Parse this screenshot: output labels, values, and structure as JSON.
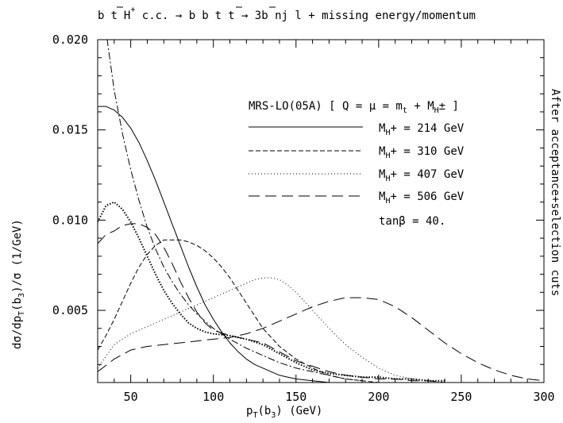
{
  "chart_data": {
    "type": "line",
    "title": "b t̄ H⁺ + c.c. → b b̄ t t̄ → 3b nj l + missing energy/momentum",
    "xlabel": "pT(b3) (GeV)",
    "ylabel": "dσ/dpT(b3)/σ (1/GeV)",
    "right_label": "After acceptance+selection cuts",
    "xlim": [
      30,
      300
    ],
    "ylim": [
      0.001,
      0.02
    ],
    "x_ticks": [
      50,
      100,
      150,
      200,
      250,
      300
    ],
    "y_ticks": [
      0.005,
      0.01,
      0.015,
      0.02
    ],
    "y_tick_labels": [
      "0.005",
      "0.010",
      "0.015",
      "0.020"
    ],
    "legend_header": "MRS-LO(05A) [ Q = μ = mt + MH± ]",
    "annotation": "tanβ = 40.",
    "series": [
      {
        "name": "MH+ = 214 GeV",
        "style": "solid",
        "mass": "214",
        "x": [
          30,
          35,
          40,
          45,
          50,
          55,
          60,
          65,
          70,
          75,
          80,
          85,
          90,
          95,
          100,
          105,
          110,
          115,
          120,
          125,
          130,
          135,
          140,
          145,
          150,
          160,
          170,
          180,
          190,
          200
        ],
        "y": [
          0.0163,
          0.0163,
          0.0161,
          0.0157,
          0.0151,
          0.0143,
          0.0133,
          0.0122,
          0.011,
          0.0098,
          0.0086,
          0.0074,
          0.0063,
          0.0053,
          0.0045,
          0.0038,
          0.0032,
          0.0027,
          0.0023,
          0.002,
          0.0018,
          0.0016,
          0.0014,
          0.0013,
          0.0012,
          0.0011,
          0.001,
          0.001,
          0.001,
          0.001
        ]
      },
      {
        "name": "MH+ = 310 GeV",
        "style": "dashed",
        "mass": "310",
        "x": [
          30,
          35,
          40,
          45,
          50,
          55,
          60,
          65,
          70,
          75,
          80,
          85,
          90,
          95,
          100,
          105,
          110,
          115,
          120,
          125,
          130,
          140,
          150,
          160,
          170,
          180,
          190,
          200,
          210
        ],
        "y": [
          0.0028,
          0.0036,
          0.0045,
          0.0055,
          0.0065,
          0.0074,
          0.0081,
          0.0086,
          0.0089,
          0.0089,
          0.0089,
          0.0088,
          0.0086,
          0.0083,
          0.0079,
          0.0074,
          0.0068,
          0.0061,
          0.0054,
          0.0047,
          0.004,
          0.003,
          0.0023,
          0.0018,
          0.0014,
          0.0012,
          0.0011,
          0.001,
          0.001
        ]
      },
      {
        "name": "MH+ = 407 GeV",
        "style": "dotted",
        "mass": "407",
        "x": [
          30,
          40,
          50,
          60,
          70,
          80,
          90,
          100,
          110,
          120,
          125,
          130,
          135,
          140,
          145,
          150,
          160,
          170,
          180,
          190,
          200,
          210,
          220,
          230,
          240,
          250,
          260
        ],
        "y": [
          0.0018,
          0.0031,
          0.0037,
          0.0041,
          0.0045,
          0.0049,
          0.0053,
          0.0057,
          0.0061,
          0.0065,
          0.0067,
          0.0068,
          0.0068,
          0.0067,
          0.0064,
          0.006,
          0.005,
          0.004,
          0.0031,
          0.0024,
          0.0018,
          0.0014,
          0.0012,
          0.0011,
          0.001,
          0.001,
          0.001
        ]
      },
      {
        "name": "MH+ = 506 GeV",
        "style": "longdash",
        "mass": "506",
        "x": [
          30,
          40,
          50,
          60,
          70,
          80,
          90,
          100,
          110,
          120,
          130,
          140,
          150,
          160,
          170,
          180,
          190,
          200,
          210,
          220,
          230,
          240,
          250,
          260,
          270,
          280,
          290,
          300
        ],
        "y": [
          0.0016,
          0.0023,
          0.0028,
          0.003,
          0.0031,
          0.0032,
          0.0033,
          0.0034,
          0.0035,
          0.0037,
          0.004,
          0.0044,
          0.0048,
          0.0052,
          0.0055,
          0.0057,
          0.0057,
          0.0056,
          0.0052,
          0.0046,
          0.0039,
          0.0032,
          0.0026,
          0.0021,
          0.0017,
          0.0014,
          0.0012,
          0.0011
        ]
      }
    ],
    "extra_curves": [
      {
        "style": "dashdot",
        "x": [
          30,
          35,
          40,
          45,
          50,
          55,
          60,
          65,
          70,
          75,
          80,
          85,
          90,
          95,
          100,
          110,
          120,
          130,
          140,
          150,
          160,
          170,
          180,
          190
        ],
        "y": [
          0.0245,
          0.0205,
          0.0172,
          0.0148,
          0.0128,
          0.0111,
          0.0096,
          0.0084,
          0.0074,
          0.0066,
          0.0059,
          0.0053,
          0.0048,
          0.0044,
          0.004,
          0.0034,
          0.0029,
          0.0025,
          0.0021,
          0.0018,
          0.0016,
          0.0014,
          0.0012,
          0.0011
        ]
      },
      {
        "style": "heavydot",
        "x": [
          30,
          35,
          40,
          45,
          50,
          55,
          60,
          65,
          70,
          75,
          80,
          85,
          90,
          95,
          100,
          110,
          120,
          130,
          140,
          150,
          160,
          170,
          180,
          190,
          200,
          210,
          220,
          230,
          240
        ],
        "y": [
          0.0099,
          0.0108,
          0.011,
          0.0106,
          0.0099,
          0.009,
          0.008,
          0.007,
          0.0061,
          0.0054,
          0.0048,
          0.0043,
          0.004,
          0.0038,
          0.0037,
          0.0036,
          0.0034,
          0.0031,
          0.0026,
          0.0021,
          0.0017,
          0.0015,
          0.0014,
          0.0013,
          0.0013,
          0.0012,
          0.0012,
          0.0011,
          0.0011
        ]
      },
      {
        "style": "longdash",
        "x": [
          30,
          35,
          40,
          45,
          50,
          55,
          60,
          65,
          70,
          75,
          80,
          85,
          90,
          95,
          100,
          110,
          120,
          130,
          140,
          150,
          160,
          170,
          180,
          190,
          200,
          210,
          220,
          230,
          240
        ],
        "y": [
          0.0087,
          0.0092,
          0.0094,
          0.0097,
          0.0098,
          0.0098,
          0.0096,
          0.0092,
          0.0085,
          0.0076,
          0.0066,
          0.0057,
          0.0049,
          0.0043,
          0.0039,
          0.0036,
          0.0034,
          0.0032,
          0.0027,
          0.0022,
          0.0019,
          0.0016,
          0.0014,
          0.0013,
          0.0012,
          0.0012,
          0.0011,
          0.0011,
          0.001
        ]
      }
    ]
  }
}
